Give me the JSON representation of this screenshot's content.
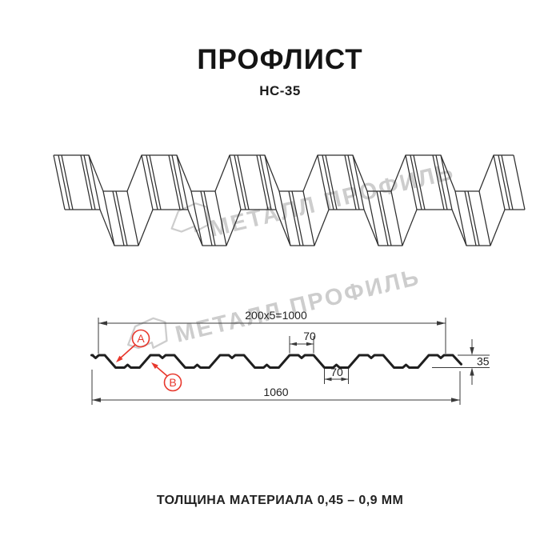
{
  "header": {
    "title": "ПРОФЛИСТ",
    "subtitle": "НС-35"
  },
  "watermark": {
    "text": "МЕТАЛЛ ПРОФИЛЬ"
  },
  "cross_section": {
    "dim_coverage_width": "200x5=1000",
    "dim_rib_top_width": "70",
    "dim_rib_bottom_width": "70",
    "dim_overall_width": "1060",
    "dim_height": "35",
    "label_a": "А",
    "label_b": "В"
  },
  "footer": {
    "text": "ТОЛЩИНА МАТЕРИАЛА 0,45 – 0,9 ММ"
  },
  "colors": {
    "accent_red": "#e8372c",
    "watermark_grey": "#c8c8c8",
    "line": "#2e2e2e"
  }
}
